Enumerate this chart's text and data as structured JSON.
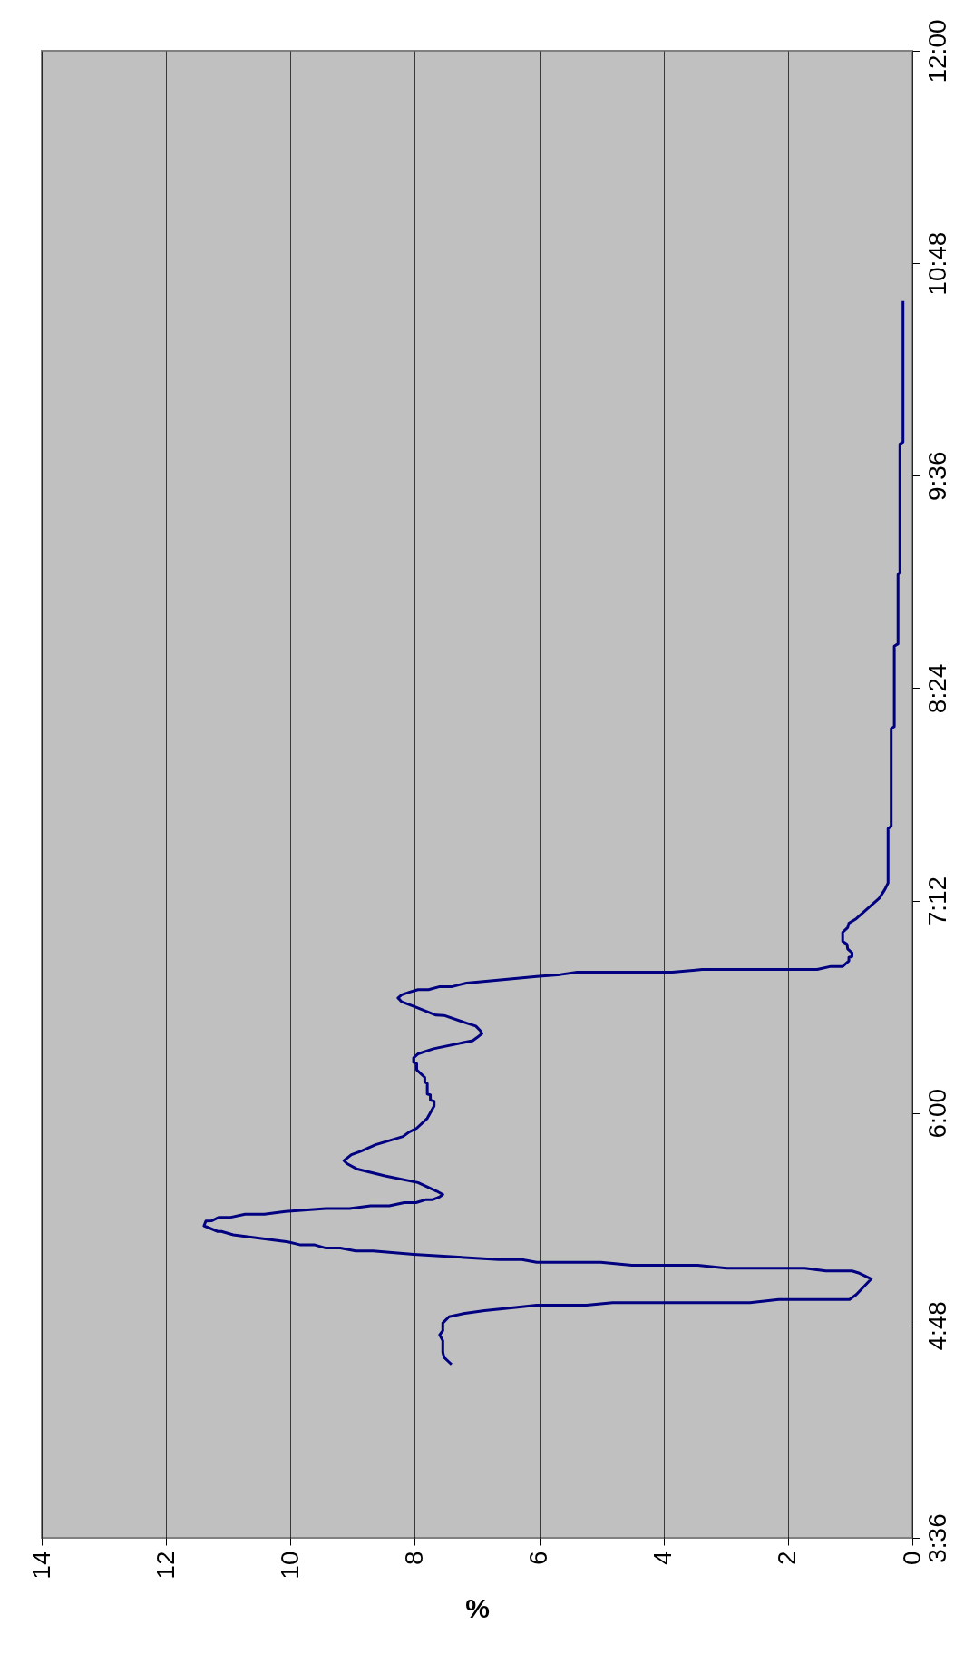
{
  "chart_data": {
    "type": "line",
    "xlabel": "%",
    "color": "#000080",
    "marker": "none",
    "line_style": "solid",
    "grid": "x",
    "ylim": [
      3.6,
      12
    ],
    "yticks": [
      {
        "value": 3.6,
        "label": "3:36"
      },
      {
        "value": 4.8,
        "label": "4:48"
      },
      {
        "value": 6.0,
        "label": "6:00"
      },
      {
        "value": 7.2,
        "label": "7:12"
      },
      {
        "value": 8.4,
        "label": "8:24"
      },
      {
        "value": 9.6,
        "label": "9:36"
      },
      {
        "value": 10.8,
        "label": "10:48"
      },
      {
        "value": 12.0,
        "label": "12:00"
      }
    ],
    "xlim": [
      14,
      0
    ],
    "xticks": [
      0,
      2,
      4,
      6,
      8,
      10,
      12,
      14
    ],
    "values": [
      4.58,
      4.62,
      4.649,
      4.714,
      4.747,
      4.77,
      4.814,
      4.849,
      4.867,
      4.884,
      4.902,
      4.915,
      4.915,
      4.929,
      4.929,
      4.947,
      4.947,
      4.975,
      5.063,
      5.095,
      5.108,
      5.108,
      5.124,
      5.124,
      5.14,
      5.14,
      5.157,
      5.157,
      5.172,
      5.172,
      5.202,
      5.221,
      5.221,
      5.237,
      5.237,
      5.256,
      5.256,
      5.272,
      5.312,
      5.331,
      5.331,
      5.363,
      5.39,
      5.391,
      5.411,
      5.411,
      5.428,
      5.428,
      5.444,
      5.46,
      5.46,
      5.476,
      5.476,
      5.494,
      5.494,
      5.51,
      5.51,
      5.526,
      5.54,
      5.559,
      5.607,
      5.645,
      5.685,
      5.714,
      5.731,
      5.765,
      5.784,
      5.821,
      5.867,
      5.893,
      5.914,
      5.97,
      6.039,
      6.067,
      6.073,
      6.102,
      6.107,
      6.166,
      6.175,
      6.201,
      6.244,
      6.278,
      6.286,
      6.312,
      6.334,
      6.363,
      6.409,
      6.426,
      6.449,
      6.466,
      6.491,
      6.508,
      6.551,
      6.553,
      6.599,
      6.628,
      6.65,
      6.668,
      6.683,
      6.697,
      6.697,
      6.713,
      6.713,
      6.734,
      6.773,
      6.782,
      6.795,
      6.795,
      6.811,
      6.811,
      6.828,
      6.828,
      6.859,
      6.879,
      6.884,
      6.905,
      6.927,
      6.953,
      6.97,
      7.021,
      7.047,
      7.072,
      7.098,
      7.214,
      7.264,
      7.3,
      7.607,
      7.619,
      8.171,
      8.183,
      8.637,
      8.65,
      9.042,
      9.054,
      9.778,
      9.79,
      10.587
    ],
    "x": [
      7.41,
      7.53,
      7.55,
      7.55,
      7.6,
      7.55,
      7.55,
      7.45,
      7.22,
      6.88,
      6.38,
      6.04,
      5.24,
      4.82,
      2.61,
      2.15,
      1.01,
      0.9,
      0.66,
      0.85,
      0.97,
      1.39,
      1.73,
      2.99,
      3.45,
      4.51,
      5.01,
      6.04,
      6.28,
      6.65,
      8.02,
      8.67,
      8.95,
      9.2,
      9.43,
      9.62,
      9.85,
      10.04,
      10.92,
      11.11,
      11.17,
      11.39,
      11.36,
      11.27,
      11.15,
      10.96,
      10.73,
      10.42,
      10.08,
      9.43,
      9.05,
      8.71,
      8.41,
      8.17,
      7.98,
      7.83,
      7.72,
      7.6,
      7.55,
      7.65,
      7.95,
      8.48,
      8.94,
      9.09,
      9.14,
      9.02,
      8.87,
      8.63,
      8.19,
      8.09,
      7.97,
      7.8,
      7.69,
      7.69,
      7.75,
      7.75,
      7.8,
      7.8,
      7.84,
      7.84,
      7.97,
      7.97,
      8.02,
      8.02,
      7.95,
      7.7,
      7.07,
      7.0,
      6.92,
      6.95,
      7.02,
      7.17,
      7.53,
      7.66,
      7.99,
      8.21,
      8.27,
      8.21,
      8.08,
      7.95,
      7.78,
      7.61,
      7.41,
      7.17,
      6.0,
      5.66,
      5.39,
      3.86,
      3.38,
      1.53,
      1.31,
      1.12,
      1.02,
      1.02,
      0.97,
      0.97,
      1.04,
      1.05,
      1.12,
      1.12,
      1.04,
      1.02,
      0.9,
      0.53,
      0.44,
      0.39,
      0.39,
      0.34,
      0.34,
      0.29,
      0.29,
      0.23,
      0.23,
      0.2,
      0.2,
      0.15,
      0.15
    ]
  }
}
